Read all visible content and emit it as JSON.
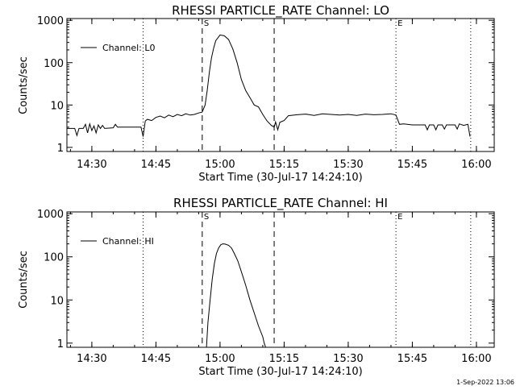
{
  "footer_stamp": "1-Sep-2022 13:06",
  "chart_data": [
    {
      "type": "line",
      "title": "RHESSI PARTICLE_RATE Channel: LO",
      "xlabel": "Start Time (30-Jul-17 14:24:10)",
      "ylabel": "Counts/sec",
      "yscale": "log",
      "ylim": [
        0.8,
        1100
      ],
      "xlim": [
        "14:24:10",
        "16:04:10"
      ],
      "x_ticks": [
        "14:30",
        "14:45",
        "15:00",
        "15:15",
        "15:30",
        "15:45",
        "16:00"
      ],
      "y_ticks": [
        "1",
        "10",
        "100",
        "1000"
      ],
      "legend": "top-left",
      "markers": [
        {
          "time": "14:42:00",
          "style": "dotted",
          "label": ""
        },
        {
          "time": "14:55:50",
          "style": "dashed",
          "label": "S"
        },
        {
          "time": "15:12:40",
          "style": "dashed",
          "label": ""
        },
        {
          "time": "15:41:10",
          "style": "dotted",
          "label": "E"
        },
        {
          "time": "15:58:40",
          "style": "dotted",
          "label": ""
        }
      ],
      "series": [
        {
          "name": "Channel: L0",
          "x": [
            "14:24:10",
            "14:26:00",
            "14:26:30",
            "14:27:00",
            "14:28:00",
            "14:28:30",
            "14:29:00",
            "14:29:30",
            "14:30:00",
            "14:30:30",
            "14:31:00",
            "14:31:30",
            "14:32:00",
            "14:32:30",
            "14:33:00",
            "14:35:00",
            "14:35:30",
            "14:36:00",
            "14:41:30",
            "14:42:00",
            "14:42:30",
            "14:43:00",
            "14:44:00",
            "14:45:00",
            "14:46:00",
            "14:47:00",
            "14:48:00",
            "14:49:00",
            "14:50:00",
            "14:51:00",
            "14:52:00",
            "14:53:00",
            "14:54:00",
            "14:55:00",
            "14:55:50",
            "14:56:30",
            "14:57:00",
            "14:57:30",
            "14:58:00",
            "14:58:30",
            "14:59:00",
            "15:00:00",
            "15:01:00",
            "15:02:00",
            "15:03:00",
            "15:04:00",
            "15:05:00",
            "15:06:00",
            "15:07:00",
            "15:08:00",
            "15:09:00",
            "15:10:00",
            "15:11:00",
            "15:12:00",
            "15:12:40",
            "15:13:00",
            "15:13:30",
            "15:14:00",
            "15:15:00",
            "15:16:00",
            "15:18:00",
            "15:20:00",
            "15:22:00",
            "15:24:00",
            "15:26:00",
            "15:28:00",
            "15:30:00",
            "15:32:00",
            "15:34:00",
            "15:36:00",
            "15:38:00",
            "15:40:00",
            "15:41:10",
            "15:42:00",
            "15:43:00",
            "15:45:00",
            "15:47:00",
            "15:48:00",
            "15:48:30",
            "15:49:00",
            "15:50:00",
            "15:50:30",
            "15:51:00",
            "15:52:00",
            "15:52:30",
            "15:53:00",
            "15:55:00",
            "15:55:30",
            "15:56:00",
            "15:57:00",
            "15:58:00",
            "15:58:30"
          ],
          "y": [
            2.8,
            2.8,
            1.9,
            2.8,
            2.8,
            3.5,
            2.2,
            3.6,
            2.5,
            3.2,
            2.2,
            3.4,
            2.8,
            3.3,
            2.8,
            2.9,
            3.5,
            3.0,
            3.0,
            1.8,
            4.2,
            4.6,
            4.3,
            5.1,
            5.5,
            5.0,
            5.8,
            5.3,
            6.0,
            5.6,
            6.2,
            5.8,
            6.0,
            6.5,
            6.8,
            10,
            22,
            60,
            130,
            220,
            330,
            450,
            430,
            350,
            210,
            100,
            40,
            22,
            15,
            10,
            9,
            6,
            4.2,
            3.3,
            3.0,
            4.0,
            2.6,
            3.9,
            4.3,
            5.6,
            5.9,
            6.1,
            5.7,
            6.2,
            6.0,
            5.8,
            6.0,
            5.7,
            6.1,
            5.9,
            6.0,
            6.2,
            5.8,
            3.5,
            3.6,
            3.4,
            3.4,
            3.4,
            2.6,
            3.4,
            3.4,
            2.6,
            3.4,
            3.4,
            2.7,
            3.4,
            3.4,
            2.7,
            3.6,
            3.3,
            3.5,
            1.8
          ]
        }
      ]
    },
    {
      "type": "line",
      "title": "RHESSI PARTICLE_RATE Channel: HI",
      "xlabel": "Start Time (30-Jul-17 14:24:10)",
      "ylabel": "Counts/sec",
      "yscale": "log",
      "ylim": [
        0.8,
        1100
      ],
      "xlim": [
        "14:24:10",
        "16:04:10"
      ],
      "x_ticks": [
        "14:30",
        "14:45",
        "15:00",
        "15:15",
        "15:30",
        "15:45",
        "16:00"
      ],
      "y_ticks": [
        "1",
        "10",
        "100",
        "1000"
      ],
      "legend": "top-left",
      "markers": [
        {
          "time": "14:42:00",
          "style": "dotted",
          "label": ""
        },
        {
          "time": "14:55:50",
          "style": "dashed",
          "label": "S"
        },
        {
          "time": "15:12:40",
          "style": "dashed",
          "label": ""
        },
        {
          "time": "15:41:10",
          "style": "dotted",
          "label": "E"
        },
        {
          "time": "15:58:40",
          "style": "dotted",
          "label": ""
        }
      ],
      "series": [
        {
          "name": "Channel: HI",
          "x": [
            "14:56:50",
            "14:57:10",
            "14:57:40",
            "14:58:10",
            "14:58:40",
            "14:59:10",
            "14:59:40",
            "15:00:10",
            "15:00:40",
            "15:01:10",
            "15:02:00",
            "15:02:40",
            "15:03:20",
            "15:04:10",
            "15:05:00",
            "15:06:00",
            "15:07:00",
            "15:08:00",
            "15:09:00",
            "15:10:00",
            "15:10:20",
            "15:10:40"
          ],
          "y": [
            0.8,
            3,
            10,
            30,
            70,
            120,
            160,
            190,
            200,
            198,
            185,
            160,
            120,
            80,
            45,
            22,
            10,
            5,
            2.5,
            1.4,
            1.0,
            0.8
          ]
        }
      ]
    }
  ]
}
